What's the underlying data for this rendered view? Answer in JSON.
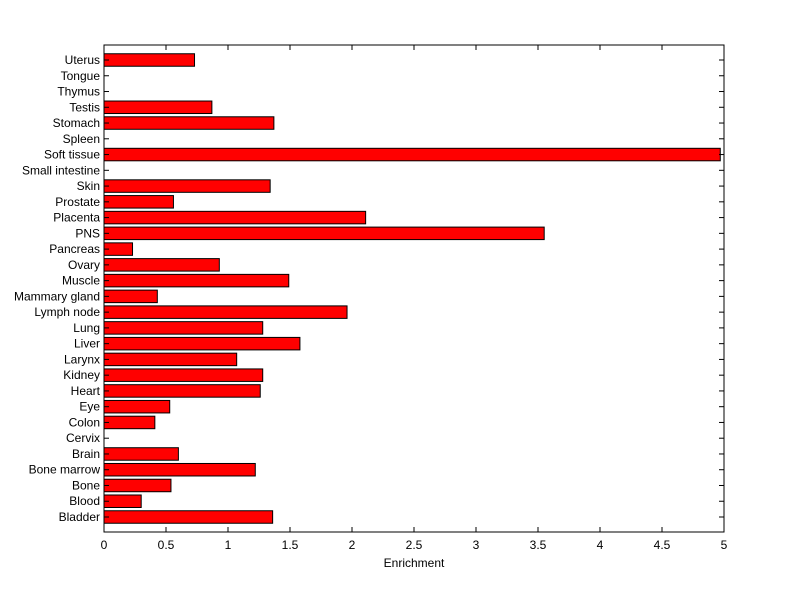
{
  "chart_data": {
    "type": "bar",
    "orientation": "horizontal",
    "title": "",
    "xlabel": "Enrichment",
    "ylabel": "",
    "xlim": [
      0,
      5
    ],
    "x_ticks": [
      "0",
      "0.5",
      "1",
      "1.5",
      "2",
      "2.5",
      "3",
      "3.5",
      "4",
      "4.5",
      "5"
    ],
    "grid": false,
    "bar_color": "#ff0000",
    "bar_edge_color": "#000000",
    "categories": [
      "Bladder",
      "Blood",
      "Bone",
      "Bone marrow",
      "Brain",
      "Cervix",
      "Colon",
      "Eye",
      "Heart",
      "Kidney",
      "Larynx",
      "Liver",
      "Lung",
      "Lymph node",
      "Mammary gland",
      "Muscle",
      "Ovary",
      "Pancreas",
      "PNS",
      "Placenta",
      "Prostate",
      "Skin",
      "Small intestine",
      "Soft tissue",
      "Spleen",
      "Stomach",
      "Testis",
      "Thymus",
      "Tongue",
      "Uterus"
    ],
    "values": [
      1.36,
      0.3,
      0.54,
      1.22,
      0.6,
      0,
      0.41,
      0.53,
      1.26,
      1.28,
      1.07,
      1.58,
      1.28,
      1.96,
      0.43,
      1.49,
      0.93,
      0.23,
      3.55,
      2.11,
      0.56,
      1.34,
      0,
      4.97,
      0,
      1.37,
      0.87,
      0,
      0,
      0.73
    ]
  }
}
